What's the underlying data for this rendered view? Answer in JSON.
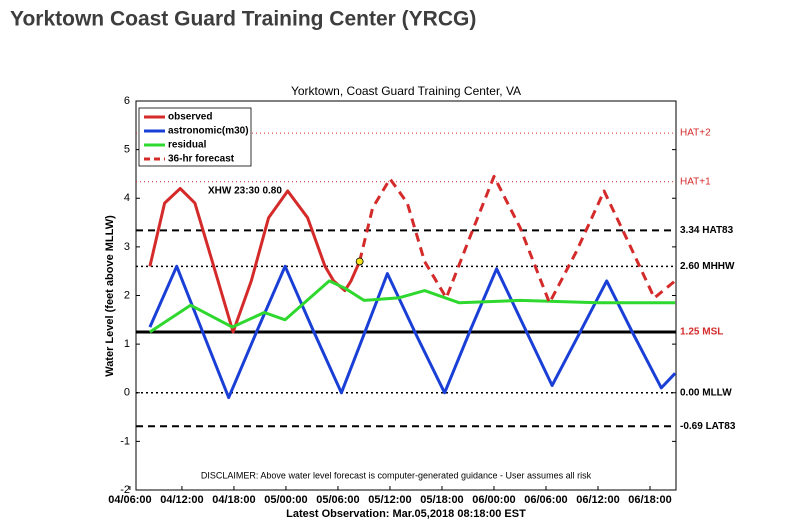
{
  "page_title": "Yorktown Coast Guard Training Center (YRCG)",
  "chart_data": {
    "type": "line",
    "title": "Yorktown, Coast Guard Training Center, VA",
    "ylabel": "Water Level (feet above MLLW)",
    "footer": "Latest Observation: Mar.05,2018 08:18:00 EST",
    "disclaimer": "DISCLAIMER: Above water level forecast is computer-generated guidance - User assumes all risk",
    "annotation": "XHW 23:30 0.80",
    "xlim": [
      6.7,
      69
    ],
    "ylim": [
      -2,
      6
    ],
    "yticks": [
      -2,
      -1,
      0,
      1,
      2,
      3,
      4,
      5,
      6
    ],
    "xticks": [
      {
        "value": 6,
        "label": "04/06:00"
      },
      {
        "value": 12,
        "label": "04/12:00"
      },
      {
        "value": 18,
        "label": "04/18:00"
      },
      {
        "value": 24,
        "label": "05/00:00"
      },
      {
        "value": 30,
        "label": "05/06:00"
      },
      {
        "value": 36,
        "label": "05/12:00"
      },
      {
        "value": 42,
        "label": "05/18:00"
      },
      {
        "value": 48,
        "label": "06/00:00"
      },
      {
        "value": 54,
        "label": "06/06:00"
      },
      {
        "value": 60,
        "label": "06/12:00"
      },
      {
        "value": 66,
        "label": "06/18:00"
      }
    ],
    "series": [
      {
        "name": "observed",
        "color": "#d42a2a",
        "style": "solid",
        "x": [
          8.3,
          10,
          11.8,
          13.5,
          15.5,
          17.9,
          20,
          22,
          24.2,
          26.5,
          28.5,
          29.5,
          30.8,
          31.5,
          32.5
        ],
        "values": [
          2.6,
          3.9,
          4.2,
          3.9,
          2.7,
          1.25,
          2.3,
          3.6,
          4.15,
          3.6,
          2.6,
          2.3,
          2.1,
          2.3,
          2.7
        ]
      },
      {
        "name": "astronomic(m30)",
        "color": "#1a3fd6",
        "style": "solid",
        "x": [
          8.3,
          11.4,
          14.4,
          17.4,
          20.6,
          23.9,
          27.1,
          30.4,
          33,
          35.7,
          39,
          42.3,
          45.3,
          48.3,
          51.5,
          54.7,
          57.8,
          61,
          64.1,
          67.3,
          68.9
        ],
        "values": [
          1.35,
          2.6,
          1.25,
          -0.1,
          1.25,
          2.6,
          1.3,
          0,
          1.2,
          2.45,
          1.2,
          0,
          1.3,
          2.55,
          1.35,
          0.15,
          1.2,
          2.3,
          1.2,
          0.1,
          0.4
        ]
      },
      {
        "name": "residual",
        "color": "#2fd82f",
        "style": "solid",
        "x": [
          8.3,
          13,
          17.8,
          21.5,
          23.9,
          29,
          30.8,
          33,
          37,
          40,
          44,
          51,
          60,
          68.9
        ],
        "values": [
          1.25,
          1.8,
          1.35,
          1.65,
          1.5,
          2.3,
          2.15,
          1.9,
          1.95,
          2.1,
          1.85,
          1.9,
          1.85,
          1.85
        ]
      },
      {
        "name": "36-hr forecast",
        "color": "#d42a2a",
        "style": "dashed",
        "x": [
          32.5,
          34,
          36,
          38,
          40,
          42.5,
          45,
          48,
          51,
          54.4,
          57.5,
          60.7,
          63.5,
          66.5,
          68.9
        ],
        "values": [
          2.7,
          3.8,
          4.4,
          3.9,
          2.7,
          1.95,
          3.1,
          4.45,
          3.4,
          1.85,
          2.9,
          4.15,
          3.1,
          1.95,
          2.3
        ]
      }
    ],
    "latest_point": {
      "x": 32.5,
      "y": 2.7,
      "color": "#f2e21a"
    },
    "reference_lines": [
      {
        "value": 5.34,
        "label": "HAT+2",
        "color": "#d42a2a",
        "style": "dotted-thin"
      },
      {
        "value": 4.34,
        "label": "HAT+1",
        "color": "#d42a2a",
        "style": "dotted-thin"
      },
      {
        "value": 3.34,
        "label": "3.34 HAT83",
        "color": "#000000",
        "style": "dashed"
      },
      {
        "value": 2.6,
        "label": "2.60 MHHW",
        "color": "#000000",
        "style": "dotted"
      },
      {
        "value": 1.25,
        "label": "1.25 MSL",
        "color": "#000000",
        "label_color": "#d42a2a",
        "style": "thick"
      },
      {
        "value": 0,
        "label": "0.00 MLLW",
        "color": "#000000",
        "style": "dotted"
      },
      {
        "value": -0.69,
        "label": "-0.69 LAT83",
        "color": "#000000",
        "style": "dashed"
      }
    ]
  }
}
